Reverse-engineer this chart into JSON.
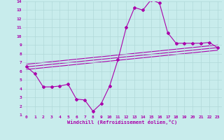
{
  "xlabel": "Windchill (Refroidissement éolien,°C)",
  "xlim": [
    -0.5,
    23.5
  ],
  "ylim": [
    1,
    14
  ],
  "xticks": [
    0,
    1,
    2,
    3,
    4,
    5,
    6,
    7,
    8,
    9,
    10,
    11,
    12,
    13,
    14,
    15,
    16,
    17,
    18,
    19,
    20,
    21,
    22,
    23
  ],
  "yticks": [
    1,
    2,
    3,
    4,
    5,
    6,
    7,
    8,
    9,
    10,
    11,
    12,
    13,
    14
  ],
  "bg_color": "#c8ecec",
  "grid_color": "#b0d8d8",
  "line_color": "#aa00aa",
  "line1_x": [
    0,
    1,
    2,
    3,
    4,
    5,
    6,
    7,
    8,
    9,
    10,
    11,
    12,
    13,
    14,
    15,
    16,
    17,
    18,
    19,
    20,
    21,
    22,
    23
  ],
  "line1_y": [
    6.5,
    5.7,
    4.2,
    4.2,
    4.3,
    4.5,
    2.8,
    2.7,
    1.4,
    2.3,
    4.3,
    7.3,
    11.0,
    13.3,
    13.0,
    14.2,
    13.8,
    10.4,
    9.2,
    9.2,
    9.2,
    9.2,
    9.3,
    8.7
  ],
  "line2_x": [
    0,
    23
  ],
  "line2_y": [
    6.5,
    8.7
  ],
  "line3_x": [
    0,
    23
  ],
  "line3_y": [
    6.5,
    8.7
  ],
  "line4_x": [
    0,
    23
  ],
  "line4_y": [
    6.5,
    8.7
  ],
  "marker": "D",
  "markersize": 2.0,
  "linewidth": 0.8
}
